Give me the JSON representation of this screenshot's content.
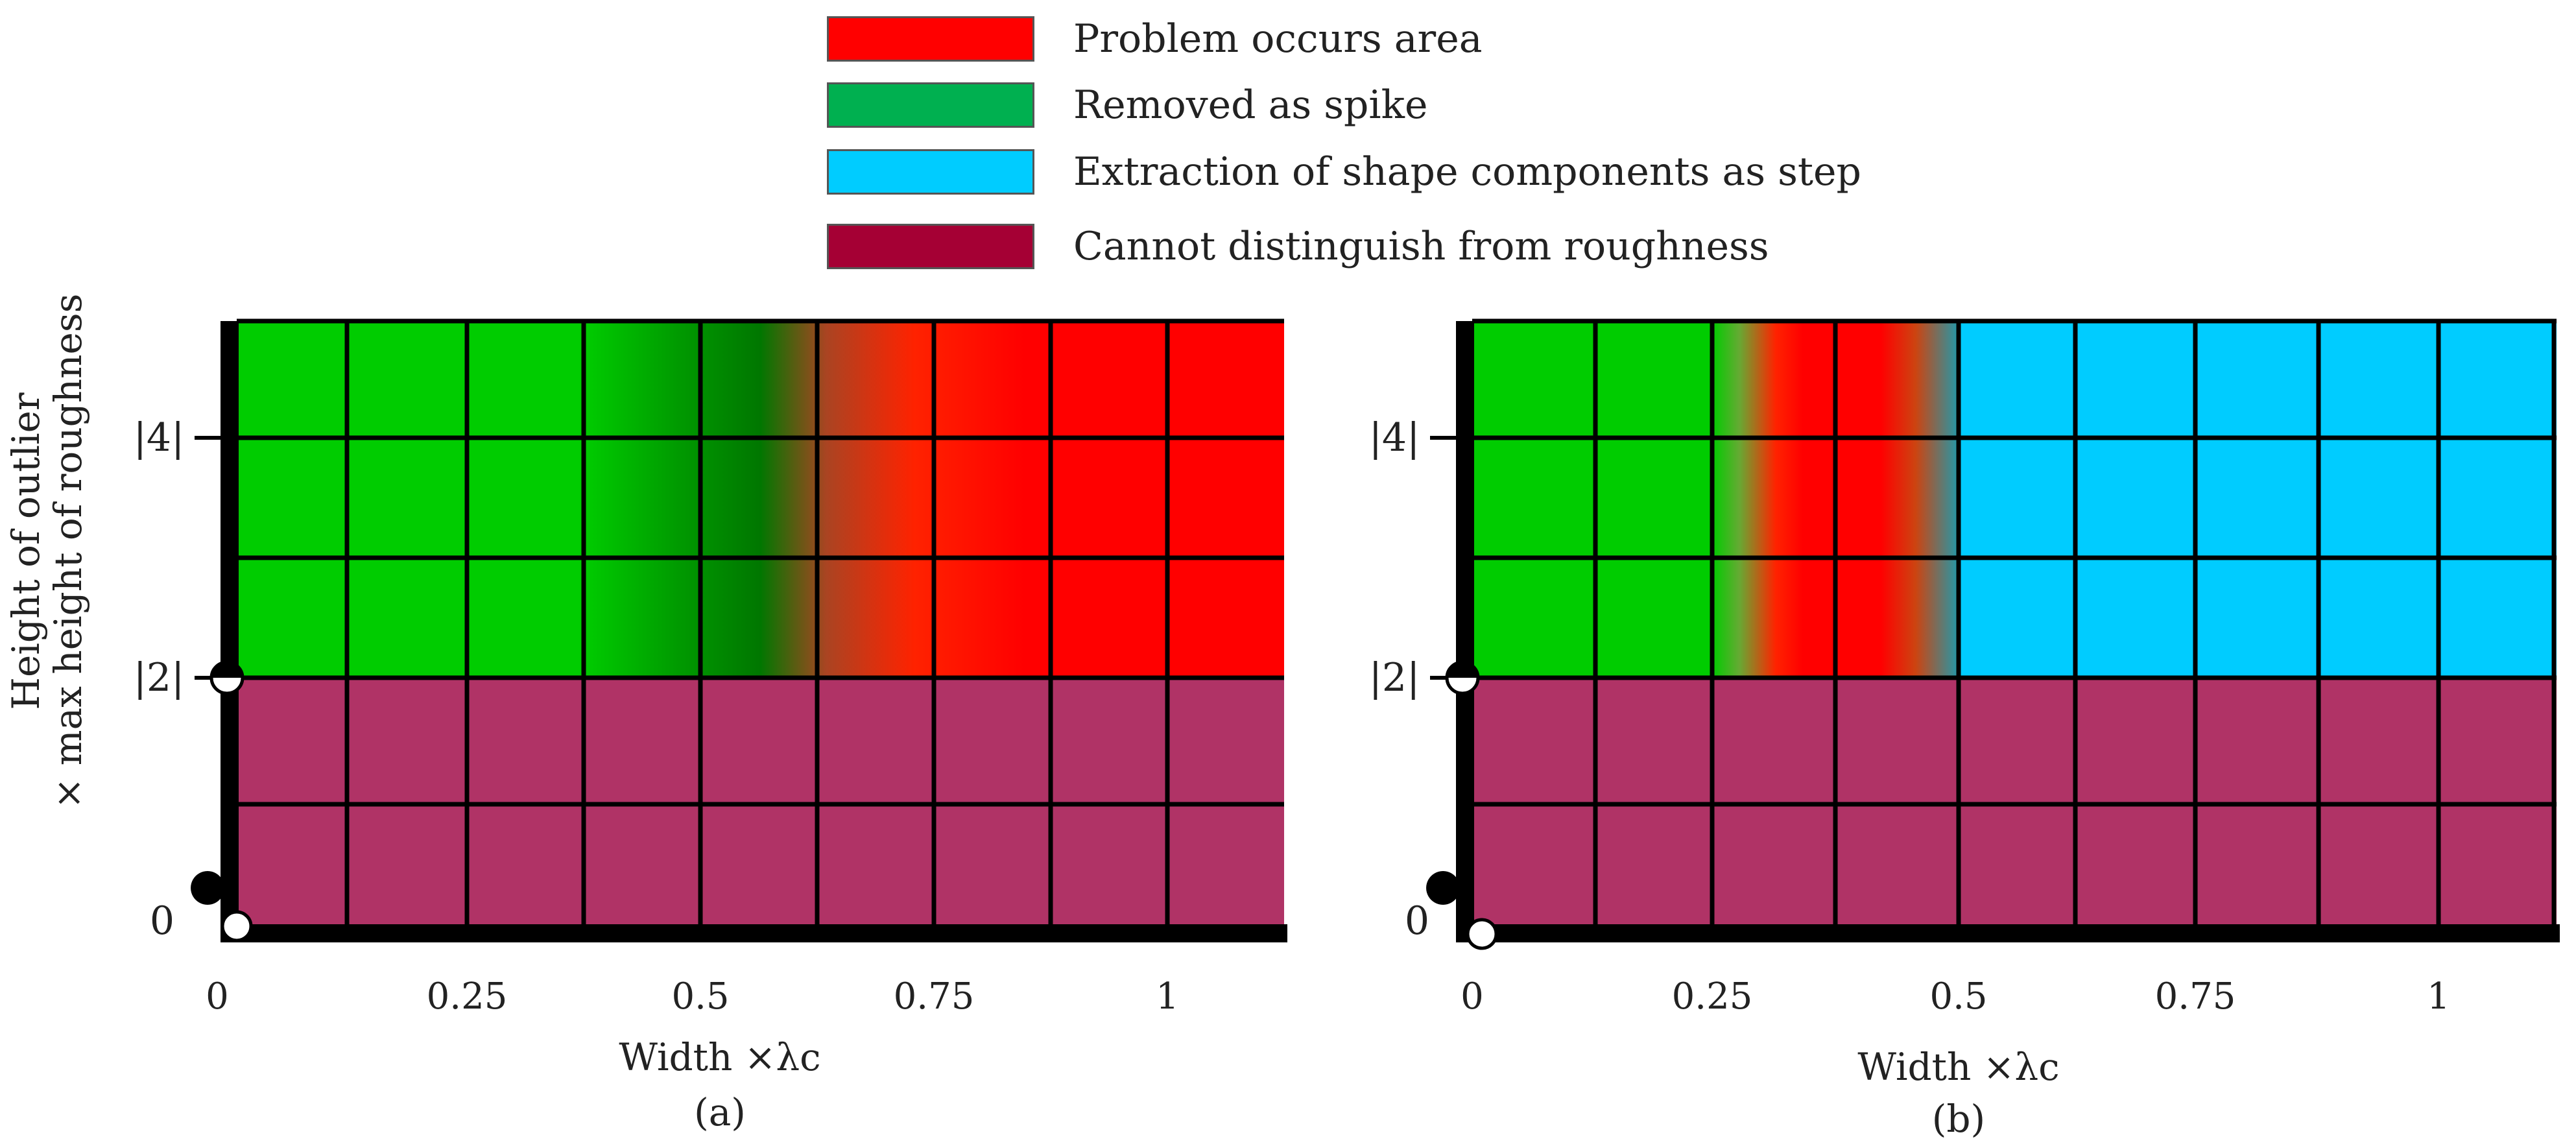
{
  "legend": [
    {
      "label": "Problem occurs area",
      "color": "#ff0000"
    },
    {
      "label": "Removed as spike",
      "color": "#00b050"
    },
    {
      "label": "Extraction of shape components as step",
      "color": "#00ccff"
    },
    {
      "label": "Cannot distinguish from roughness",
      "color": "#a50034"
    }
  ],
  "colors": {
    "red": "#ff0000",
    "green": "#00cc00",
    "dark_green": "#008800",
    "cyan": "#00ccff",
    "maroon": "#b03366",
    "grid": "#000000"
  },
  "y_axis": {
    "label_line1": "Height of outlier",
    "label_line2": "× max height of roughness",
    "ticks": [
      "0",
      "|2|",
      "|4|"
    ]
  },
  "panels": [
    {
      "id": "a",
      "caption": "(a)",
      "xlabel": "Width ×λc",
      "x_ticks": [
        "0",
        "0.25",
        "0.5",
        "0.75",
        "1"
      ]
    },
    {
      "id": "b",
      "caption": "(b)",
      "xlabel": "Width ×λc",
      "x_ticks": [
        "0",
        "0.25",
        "0.5",
        "0.75",
        "1"
      ]
    }
  ]
}
